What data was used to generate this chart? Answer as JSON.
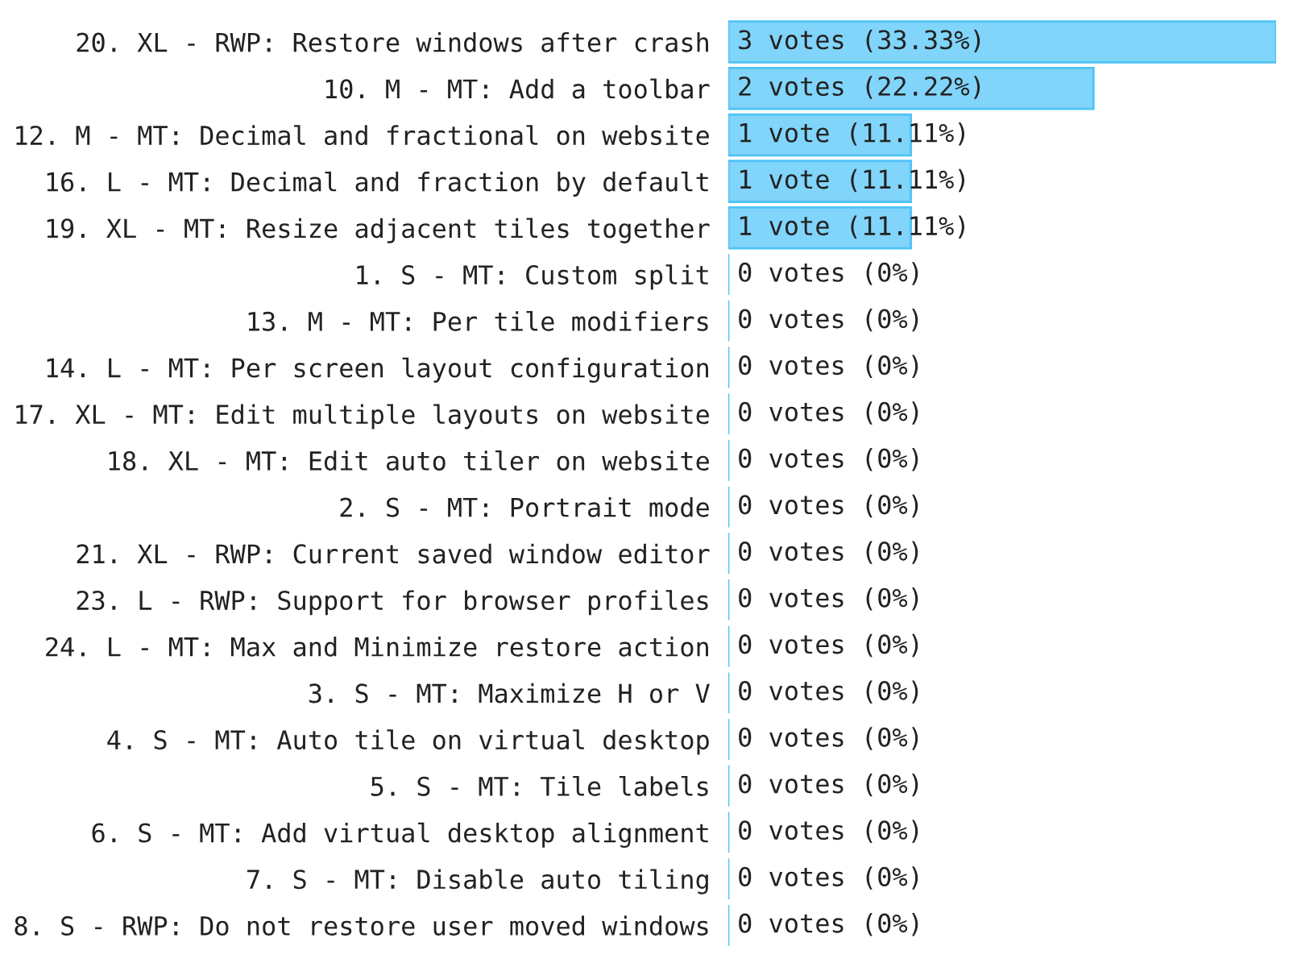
{
  "chart_data": {
    "type": "bar",
    "orientation": "horizontal",
    "categories": [
      "20. XL - RWP: Restore windows after crash",
      "10. M - MT: Add a toolbar",
      "12. M - MT: Decimal and fractional on website",
      "16. L - MT: Decimal and fraction by default",
      "19. XL - MT: Resize adjacent tiles together",
      "1. S - MT: Custom split",
      "13. M - MT: Per tile modifiers",
      "14. L - MT: Per screen layout configuration",
      "17. XL - MT: Edit multiple layouts on website",
      "18. XL - MT: Edit auto tiler on website",
      "2. S - MT: Portrait mode",
      "21. XL - RWP: Current saved window editor",
      "23. L - RWP: Support for browser profiles",
      "24. L - MT: Max and Minimize restore action",
      "3. S - MT: Maximize H or V",
      "4. S - MT: Auto tile on virtual desktop",
      "5. S - MT: Tile labels",
      "6. S - MT: Add virtual desktop alignment",
      "7. S - MT: Disable auto tiling",
      "8. S - RWP: Do not restore user moved windows"
    ],
    "values": [
      3,
      2,
      1,
      1,
      1,
      0,
      0,
      0,
      0,
      0,
      0,
      0,
      0,
      0,
      0,
      0,
      0,
      0,
      0,
      0
    ],
    "value_labels": [
      "3 votes (33.33%)",
      "2 votes (22.22%)",
      "1 vote (11.11%)",
      "1 vote (11.11%)",
      "1 vote (11.11%)",
      "0 votes (0%)",
      "0 votes (0%)",
      "0 votes (0%)",
      "0 votes (0%)",
      "0 votes (0%)",
      "0 votes (0%)",
      "0 votes (0%)",
      "0 votes (0%)",
      "0 votes (0%)",
      "0 votes (0%)",
      "0 votes (0%)",
      "0 votes (0%)",
      "0 votes (0%)",
      "0 votes (0%)",
      "0 votes (0%)"
    ],
    "color": "#81d4fa",
    "xlim": [
      0,
      3
    ],
    "tick_labels": "y"
  }
}
